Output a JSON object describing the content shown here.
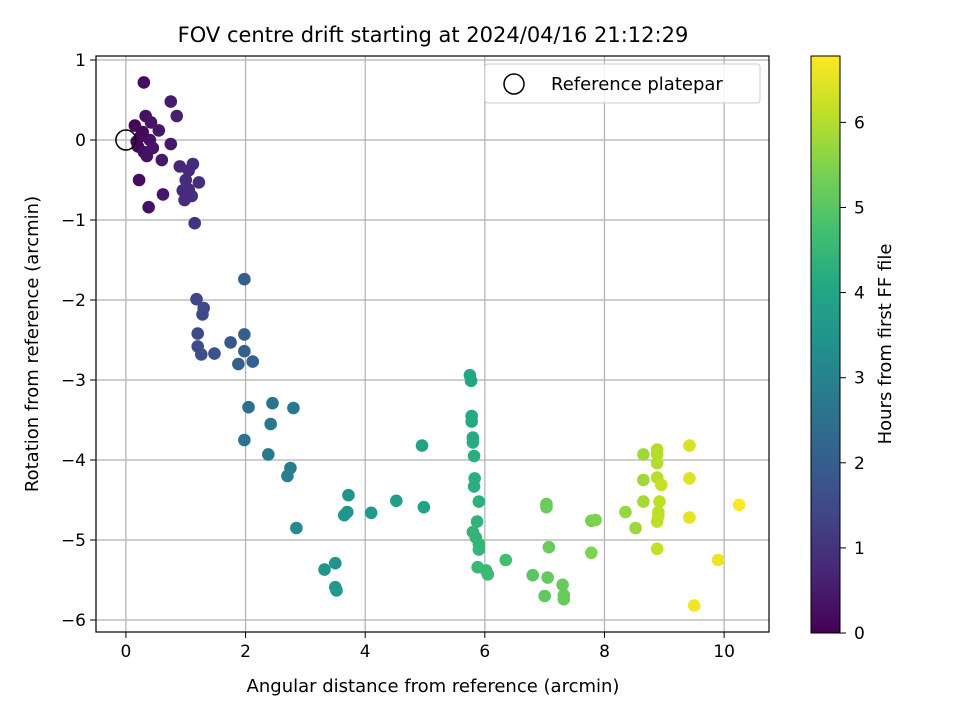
{
  "chart_data": {
    "type": "scatter",
    "title": "FOV centre drift starting at 2024/04/16 21:12:29",
    "xlabel": "Angular distance from reference (arcmin)",
    "ylabel": "Rotation from reference (arcmin)",
    "xlim": [
      -0.5,
      10.75
    ],
    "ylim": [
      -6.15,
      1.05
    ],
    "xticks": [
      0,
      2,
      4,
      6,
      8,
      10
    ],
    "yticks": [
      1,
      0,
      -1,
      -2,
      -3,
      -4,
      -5,
      -6
    ],
    "grid": true,
    "legend": {
      "placement": "top-right",
      "entries": [
        "Reference platepar"
      ]
    },
    "reference_point": {
      "label": "Reference platepar",
      "x": 0,
      "y": 0
    },
    "colorbar": {
      "label": "Hours from first FF file",
      "range": [
        0,
        6.78
      ],
      "ticks": [
        0,
        1,
        2,
        3,
        4,
        5,
        6
      ],
      "colormap": "viridis"
    },
    "points": [
      [
        0.3,
        0.72,
        0.2
      ],
      [
        0.75,
        0.48,
        0.5
      ],
      [
        0.85,
        0.3,
        0.6
      ],
      [
        0.15,
        0.18,
        0.1
      ],
      [
        0.33,
        0.3,
        0.3
      ],
      [
        0.42,
        0.22,
        0.35
      ],
      [
        0.55,
        0.12,
        0.4
      ],
      [
        0.25,
        0.05,
        0.15
      ],
      [
        0.4,
        0.0,
        0.3
      ],
      [
        0.2,
        -0.08,
        0.1
      ],
      [
        0.3,
        -0.15,
        0.25
      ],
      [
        0.45,
        -0.1,
        0.35
      ],
      [
        0.6,
        -0.25,
        0.45
      ],
      [
        0.35,
        -0.2,
        0.3
      ],
      [
        0.75,
        -0.05,
        0.5
      ],
      [
        0.22,
        -0.5,
        0.2
      ],
      [
        0.62,
        -0.68,
        0.4
      ],
      [
        0.38,
        -0.84,
        0.3
      ],
      [
        0.28,
        0.1,
        0.15
      ],
      [
        0.18,
        -0.02,
        0.12
      ],
      [
        0.9,
        -0.33,
        0.75
      ],
      [
        1.0,
        -0.5,
        0.85
      ],
      [
        1.12,
        -0.3,
        0.85
      ],
      [
        1.05,
        -0.38,
        0.8
      ],
      [
        1.22,
        -0.53,
        0.9
      ],
      [
        0.95,
        -0.63,
        0.85
      ],
      [
        1.1,
        -0.7,
        0.9
      ],
      [
        0.98,
        -0.75,
        0.85
      ],
      [
        1.05,
        -0.62,
        0.85
      ],
      [
        1.15,
        -1.04,
        0.95
      ],
      [
        1.18,
        -1.99,
        1.4
      ],
      [
        1.3,
        -2.1,
        1.5
      ],
      [
        1.28,
        -2.18,
        1.5
      ],
      [
        1.2,
        -2.42,
        1.5
      ],
      [
        1.2,
        -2.58,
        1.55
      ],
      [
        1.26,
        -2.68,
        1.6
      ],
      [
        1.48,
        -2.67,
        1.7
      ],
      [
        1.75,
        -2.53,
        1.85
      ],
      [
        1.98,
        -1.74,
        2.0
      ],
      [
        1.98,
        -2.43,
        2.0
      ],
      [
        1.98,
        -2.64,
        2.05
      ],
      [
        2.12,
        -2.77,
        2.1
      ],
      [
        1.88,
        -2.8,
        2.05
      ],
      [
        2.05,
        -3.34,
        2.5
      ],
      [
        2.45,
        -3.29,
        2.6
      ],
      [
        2.8,
        -3.35,
        2.7
      ],
      [
        1.98,
        -3.75,
        2.55
      ],
      [
        2.42,
        -3.55,
        2.7
      ],
      [
        2.38,
        -3.93,
        2.75
      ],
      [
        2.75,
        -4.1,
        2.85
      ],
      [
        2.7,
        -4.2,
        2.9
      ],
      [
        2.85,
        -4.85,
        3.2
      ],
      [
        3.72,
        -4.44,
        3.5
      ],
      [
        3.7,
        -4.65,
        3.5
      ],
      [
        3.65,
        -4.69,
        3.55
      ],
      [
        4.1,
        -4.66,
        3.7
      ],
      [
        4.52,
        -4.51,
        3.8
      ],
      [
        4.95,
        -3.82,
        3.85
      ],
      [
        4.98,
        -4.59,
        3.9
      ],
      [
        3.5,
        -5.29,
        3.5
      ],
      [
        3.32,
        -5.37,
        3.55
      ],
      [
        3.5,
        -5.59,
        3.6
      ],
      [
        3.52,
        -5.63,
        3.6
      ],
      [
        5.75,
        -2.94,
        4.05
      ],
      [
        5.77,
        -3.01,
        4.05
      ],
      [
        5.78,
        -3.45,
        4.1
      ],
      [
        5.78,
        -3.52,
        4.1
      ],
      [
        5.8,
        -3.72,
        4.15
      ],
      [
        5.8,
        -3.78,
        4.15
      ],
      [
        5.82,
        -3.95,
        4.2
      ],
      [
        5.83,
        -4.23,
        4.25
      ],
      [
        5.82,
        -4.33,
        4.25
      ],
      [
        5.9,
        -4.52,
        4.3
      ],
      [
        5.87,
        -4.77,
        4.35
      ],
      [
        5.8,
        -4.9,
        4.4
      ],
      [
        5.85,
        -4.97,
        4.4
      ],
      [
        5.9,
        -5.05,
        4.45
      ],
      [
        5.9,
        -5.12,
        4.45
      ],
      [
        5.88,
        -5.34,
        4.5
      ],
      [
        6.02,
        -5.38,
        4.55
      ],
      [
        6.05,
        -5.43,
        4.6
      ],
      [
        6.35,
        -5.25,
        4.7
      ],
      [
        6.8,
        -5.44,
        5.0
      ],
      [
        7.0,
        -5.7,
        5.1
      ],
      [
        7.05,
        -5.47,
        5.15
      ],
      [
        7.3,
        -5.56,
        5.2
      ],
      [
        7.32,
        -5.69,
        5.2
      ],
      [
        7.32,
        -5.74,
        5.2
      ],
      [
        7.07,
        -5.09,
        5.2
      ],
      [
        7.03,
        -4.55,
        5.2
      ],
      [
        7.03,
        -4.59,
        5.2
      ],
      [
        7.78,
        -4.76,
        5.4
      ],
      [
        7.85,
        -4.75,
        5.45
      ],
      [
        7.78,
        -5.16,
        5.45
      ],
      [
        8.35,
        -4.65,
        5.7
      ],
      [
        8.52,
        -4.85,
        5.75
      ],
      [
        8.65,
        -3.93,
        5.8
      ],
      [
        8.65,
        -4.25,
        5.8
      ],
      [
        8.65,
        -4.52,
        5.85
      ],
      [
        8.88,
        -3.87,
        6.0
      ],
      [
        8.88,
        -3.93,
        6.0
      ],
      [
        8.88,
        -4.04,
        6.0
      ],
      [
        8.88,
        -4.22,
        6.05
      ],
      [
        8.92,
        -4.52,
        6.1
      ],
      [
        8.9,
        -4.65,
        6.1
      ],
      [
        8.9,
        -4.7,
        6.1
      ],
      [
        8.88,
        -4.77,
        6.1
      ],
      [
        8.95,
        -4.31,
        6.15
      ],
      [
        8.88,
        -5.11,
        6.15
      ],
      [
        9.42,
        -3.82,
        6.4
      ],
      [
        9.42,
        -4.23,
        6.45
      ],
      [
        9.42,
        -4.72,
        6.5
      ],
      [
        9.9,
        -5.25,
        6.6
      ],
      [
        9.5,
        -5.82,
        6.65
      ],
      [
        10.25,
        -4.56,
        6.78
      ]
    ]
  }
}
